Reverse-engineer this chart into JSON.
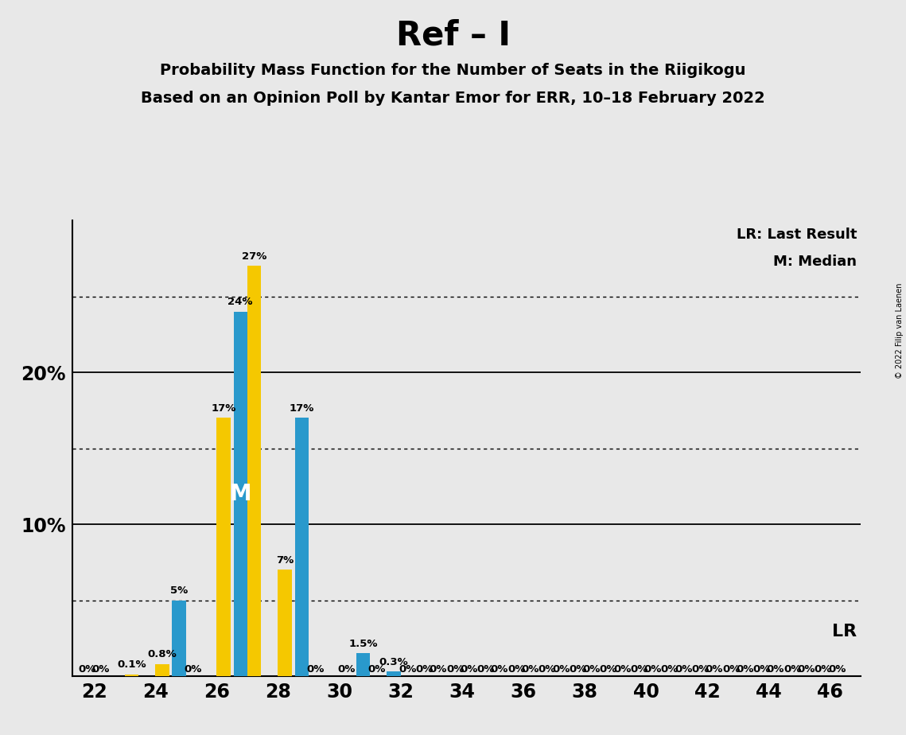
{
  "title": "Ref – I",
  "subtitle1": "Probability Mass Function for the Number of Seats in the Riigikogu",
  "subtitle2": "Based on an Opinion Poll by Kantar Emor for ERR, 10–18 February 2022",
  "copyright": "© 2022 Filip van Laenen",
  "legend_lr": "LR: Last Result",
  "legend_m": "M: Median",
  "median_label": "M",
  "lr_label": "LR",
  "background_color": "#e8e8e8",
  "bar_color_blue": "#2999cc",
  "bar_color_yellow": "#f5c800",
  "seats": [
    22,
    23,
    24,
    25,
    26,
    27,
    28,
    29,
    30,
    31,
    32,
    33,
    34,
    35,
    36,
    37,
    38,
    39,
    40,
    41,
    42,
    43,
    44,
    45,
    46
  ],
  "blue_values": [
    0.0,
    0.0,
    0.0,
    5.0,
    0.0,
    24.0,
    0.0,
    17.0,
    0.0,
    1.5,
    0.3,
    0.0,
    0.0,
    0.0,
    0.0,
    0.0,
    0.0,
    0.0,
    0.0,
    0.0,
    0.0,
    0.0,
    0.0,
    0.0,
    0.0
  ],
  "yellow_values": [
    0.0,
    0.1,
    0.8,
    0.0,
    17.0,
    27.0,
    7.0,
    0.0,
    0.0,
    0.0,
    0.0,
    0.0,
    0.0,
    0.0,
    0.0,
    0.0,
    0.0,
    0.0,
    0.0,
    0.0,
    0.0,
    0.0,
    0.0,
    0.0,
    0.0
  ],
  "blue_labels": [
    "0%",
    "",
    "",
    "5%",
    "",
    "24%",
    "",
    "17%",
    "",
    "1.5%",
    "0.3%",
    "0%",
    "0%",
    "0%",
    "0%",
    "0%",
    "0%",
    "0%",
    "0%",
    "0%",
    "0%",
    "0%",
    "0%",
    "0%",
    "0%"
  ],
  "yellow_labels": [
    "0%",
    "0.1%",
    "0.8%",
    "0%",
    "17%",
    "27%",
    "7%",
    "0%",
    "0%",
    "0%",
    "0%",
    "0%",
    "0%",
    "0%",
    "0%",
    "0%",
    "0%",
    "0%",
    "0%",
    "0%",
    "0%",
    "0%",
    "0%",
    "0%",
    "0%"
  ],
  "median_seat": 27,
  "ylim_max": 30,
  "solid_gridlines": [
    10,
    20
  ],
  "dotted_gridlines": [
    5,
    15,
    25
  ],
  "bar_width": 0.45,
  "xlim_min": 21.3,
  "xlim_max": 47.0
}
